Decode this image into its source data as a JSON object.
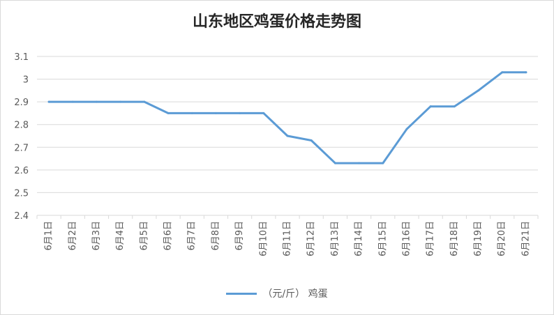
{
  "chart_data": {
    "type": "line",
    "title": "山东地区鸡蛋价格走势图",
    "categories": [
      "6月1日",
      "6月2日",
      "6月3日",
      "6月4日",
      "6月5日",
      "6月6日",
      "6月7日",
      "6月8日",
      "6月9日",
      "6月10日",
      "6月11日",
      "6月12日",
      "6月13日",
      "6月14日",
      "6月15日",
      "6月16日",
      "6月17日",
      "6月18日",
      "6月19日",
      "6月20日",
      "6月21日"
    ],
    "series": [
      {
        "name": "（元/斤） 鸡蛋",
        "color": "#5b9bd5",
        "values": [
          2.9,
          2.9,
          2.9,
          2.9,
          2.9,
          2.85,
          2.85,
          2.85,
          2.85,
          2.85,
          2.75,
          2.73,
          2.63,
          2.63,
          2.63,
          2.78,
          2.88,
          2.88,
          2.95,
          3.03,
          3.03
        ]
      }
    ],
    "yticks": [
      "2.4",
      "2.5",
      "2.6",
      "2.7",
      "2.8",
      "2.9",
      "3",
      "3.1"
    ],
    "ylim": [
      2.4,
      3.1
    ],
    "grid": true,
    "legend_position": "bottom"
  }
}
